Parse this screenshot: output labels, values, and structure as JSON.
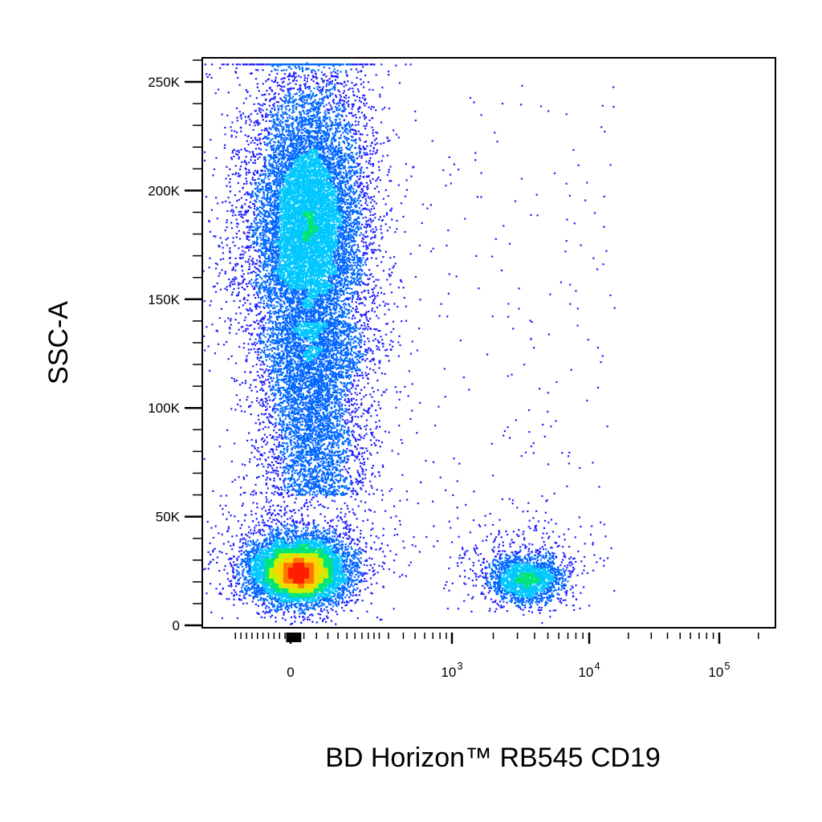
{
  "chart_data": {
    "type": "scatter",
    "style": "density-colored flow cytometry dot plot",
    "xlabel": "BD Horizon™ RB545  CD19",
    "ylabel": "SSC-A",
    "x_scale": "biexponential",
    "x_range": [
      -250,
      150000
    ],
    "y_range": [
      0,
      262144
    ],
    "x_tick_labels": [
      {
        "value": 0,
        "label": "0",
        "exp": ""
      },
      {
        "value": 1000,
        "label": "10",
        "exp": "3"
      },
      {
        "value": 10000,
        "label": "10",
        "exp": "4"
      },
      {
        "value": 100000,
        "label": "10",
        "exp": "5"
      }
    ],
    "y_tick_labels": [
      {
        "value": 0,
        "label": "0"
      },
      {
        "value": 50000,
        "label": "50K"
      },
      {
        "value": 100000,
        "label": "100K"
      },
      {
        "value": 150000,
        "label": "150K"
      },
      {
        "value": 200000,
        "label": "200K"
      },
      {
        "value": 250000,
        "label": "250K"
      }
    ],
    "grid": false,
    "legend": "none",
    "density_colors": [
      "#1e1eff",
      "#0066ff",
      "#00c8ff",
      "#00e676",
      "#c8f000",
      "#ffd200",
      "#ff7800",
      "#ff1e00"
    ],
    "populations": [
      {
        "description": "CD19-negative, low side scatter",
        "x_center": 0,
        "x_spread": 120,
        "y_center": 25000,
        "y_spread": 9000,
        "density": "high"
      },
      {
        "description": "CD19-negative, high side scatter",
        "x_center": 0,
        "x_spread": 180,
        "y_center": 180000,
        "y_spread": 45000,
        "density": "high"
      },
      {
        "description": "CD19-positive, low side scatter",
        "x_center": 3500,
        "x_spread_log10": 0.15,
        "y_center": 21000,
        "y_spread": 6000,
        "density": "medium"
      }
    ]
  }
}
